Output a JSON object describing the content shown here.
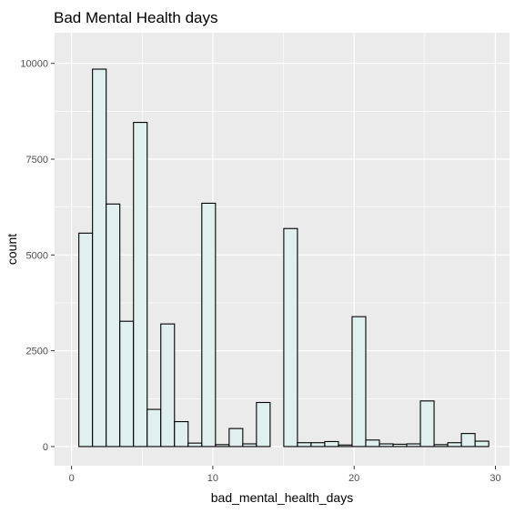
{
  "chart_data": {
    "type": "bar",
    "title": "Bad Mental Health days",
    "xlabel": "bad_mental_health_days",
    "ylabel": "count",
    "xlim": [
      -1.2,
      31.0
    ],
    "ylim": [
      -500,
      10800
    ],
    "x_ticks": [
      0,
      10,
      20,
      30
    ],
    "y_ticks": [
      0,
      2500,
      5000,
      7500,
      10000
    ],
    "x_tick_labels": [
      "0",
      "10",
      "20",
      "30"
    ],
    "y_tick_labels": [
      "0",
      "2500",
      "5000",
      "7500",
      "10000"
    ],
    "bin_width": 0.967,
    "bin_centers": [
      1,
      1.967,
      2.934,
      3.901,
      4.868,
      5.835,
      6.802,
      7.769,
      8.736,
      9.703,
      10.67,
      11.637,
      12.604,
      13.571,
      14.538,
      15.505,
      16.472,
      17.439,
      18.406,
      19.373,
      20.34,
      21.307,
      22.274,
      23.241,
      24.208,
      25.175,
      26.142,
      27.109,
      28.076,
      29.043
    ],
    "values": [
      5570,
      9850,
      6330,
      3270,
      8460,
      970,
      3200,
      650,
      90,
      6350,
      50,
      470,
      70,
      1150,
      0,
      5690,
      100,
      100,
      130,
      40,
      3390,
      170,
      70,
      60,
      70,
      1190,
      50,
      100,
      340,
      140
    ],
    "bar_fill": "#dff0ee",
    "bar_stroke": "#000000",
    "panel_background": "#ebebeb",
    "grid": true,
    "grid_color": "#ffffff"
  }
}
